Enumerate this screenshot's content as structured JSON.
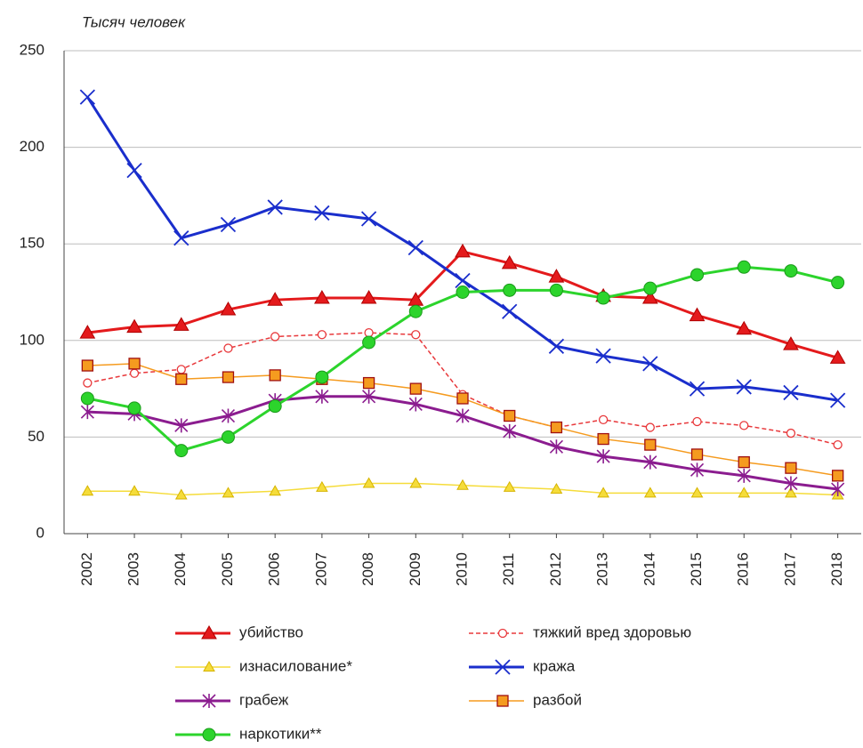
{
  "chart_data": {
    "type": "line",
    "y_label": "Тысяч человек",
    "categories": [
      "2002",
      "2003",
      "2004",
      "2005",
      "2006",
      "2007",
      "2008",
      "2009",
      "2010",
      "2011",
      "2012",
      "2013",
      "2014",
      "2015",
      "2016",
      "2017",
      "2018"
    ],
    "ylim": [
      0,
      250
    ],
    "yticks": [
      0,
      50,
      100,
      150,
      200,
      250
    ],
    "grid": true,
    "series": [
      {
        "name": "убийство",
        "color": "#e41a1c",
        "marker": "triangle",
        "dash": false,
        "values": [
          104,
          107,
          108,
          116,
          121,
          122,
          122,
          121,
          146,
          140,
          133,
          123,
          122,
          113,
          106,
          98,
          91
        ]
      },
      {
        "name": "тяжкий вред здоровью",
        "color": "#e8383b",
        "marker": "open-circle",
        "dash": true,
        "values": [
          78,
          83,
          85,
          96,
          102,
          103,
          104,
          103,
          72,
          61,
          55,
          59,
          55,
          58,
          56,
          52,
          46
        ]
      },
      {
        "name": "изнасилование*",
        "color": "#f5dc3a",
        "marker": "small-triangle",
        "dash": false,
        "values": [
          22,
          22,
          20,
          21,
          22,
          24,
          26,
          26,
          25,
          24,
          23,
          21,
          21,
          21,
          21,
          21,
          20
        ]
      },
      {
        "name": "кража",
        "color": "#1a2ecc",
        "marker": "x",
        "dash": false,
        "values": [
          226,
          188,
          153,
          160,
          169,
          166,
          163,
          148,
          131,
          115,
          97,
          92,
          88,
          75,
          76,
          73,
          69
        ]
      },
      {
        "name": "грабеж",
        "color": "#8b1c8f",
        "marker": "star",
        "dash": false,
        "values": [
          63,
          62,
          56,
          61,
          69,
          71,
          71,
          67,
          61,
          53,
          45,
          40,
          37,
          33,
          30,
          26,
          23
        ]
      },
      {
        "name": "разбой",
        "color": "#f59b1f",
        "marker": "square",
        "dash": false,
        "values": [
          87,
          88,
          80,
          81,
          82,
          80,
          78,
          75,
          70,
          61,
          55,
          49,
          46,
          41,
          37,
          34,
          30
        ]
      },
      {
        "name": "наркотики**",
        "color": "#2cd42c",
        "marker": "circle",
        "dash": false,
        "values": [
          70,
          65,
          43,
          50,
          66,
          81,
          99,
          115,
          125,
          126,
          126,
          122,
          127,
          134,
          138,
          136,
          130
        ]
      }
    ]
  }
}
